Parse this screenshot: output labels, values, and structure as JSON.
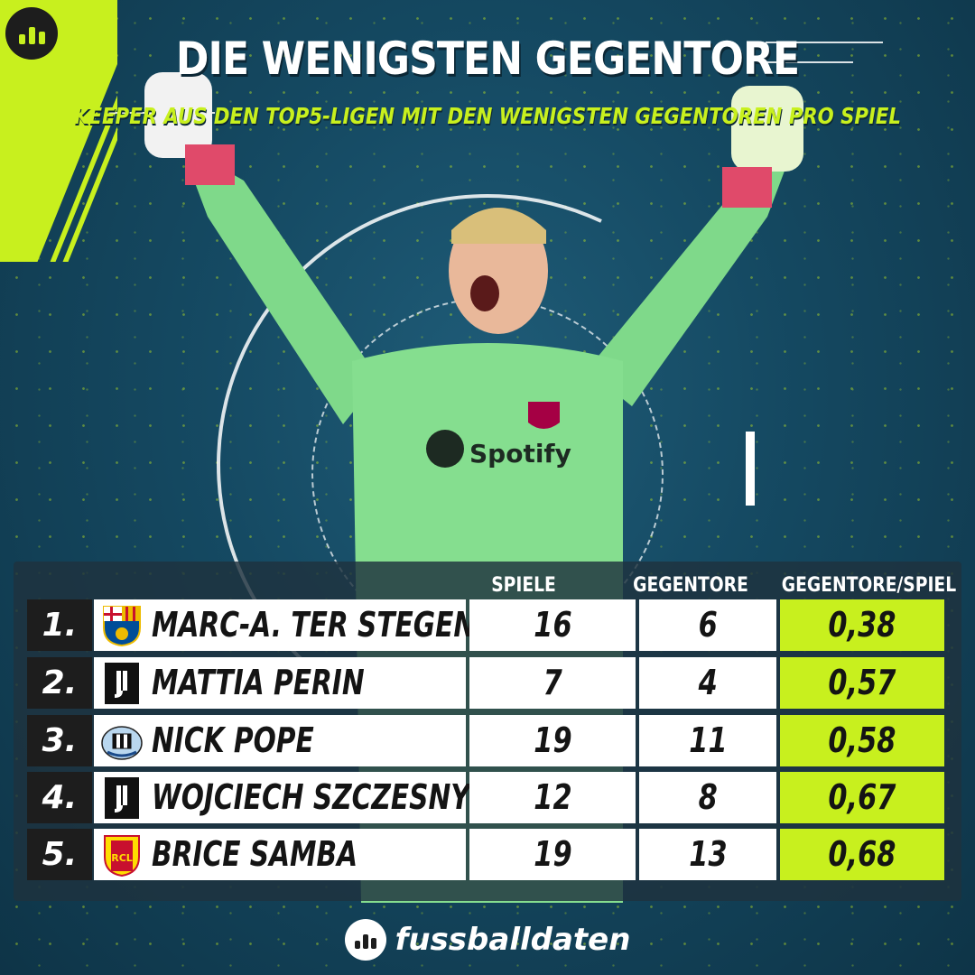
{
  "header": {
    "title": "DIE WENIGSTEN GEGENTORE",
    "subtitle": "KEEPER AUS DEN TOP5-LIGEN MIT DEN WENIGSTEN GEGENTOREN PRO SPIEL"
  },
  "colors": {
    "accent": "#c8f01e",
    "background": "#154a63",
    "rank_bg": "#1d1d1d",
    "cell_bg": "#ffffff"
  },
  "chart_data": {
    "type": "table",
    "columns": [
      "SPIELE",
      "GEGENTORE",
      "GEGENTORE/SPIEL"
    ],
    "rows": [
      {
        "rank": "1.",
        "club_icon": "fc-barcelona-crest-icon",
        "player": "MARC-A. TER STEGEN",
        "spiele": "16",
        "gegentore": "6",
        "pro_spiel": "0,38"
      },
      {
        "rank": "2.",
        "club_icon": "juventus-crest-icon",
        "player": "MATTIA PERIN",
        "spiele": "7",
        "gegentore": "4",
        "pro_spiel": "0,57"
      },
      {
        "rank": "3.",
        "club_icon": "newcastle-crest-icon",
        "player": "NICK POPE",
        "spiele": "19",
        "gegentore": "11",
        "pro_spiel": "0,58"
      },
      {
        "rank": "4.",
        "club_icon": "juventus-crest-icon",
        "player": "WOJCIECH SZCZESNY",
        "spiele": "12",
        "gegentore": "8",
        "pro_spiel": "0,67"
      },
      {
        "rank": "5.",
        "club_icon": "rc-lens-crest-icon",
        "player": "BRICE SAMBA",
        "spiele": "19",
        "gegentore": "13",
        "pro_spiel": "0,68"
      }
    ]
  },
  "image": {
    "subject": "goalkeeper-celebrating-photo",
    "shirt_text": "Spotify"
  },
  "footer": {
    "brand": "fussballdaten"
  }
}
